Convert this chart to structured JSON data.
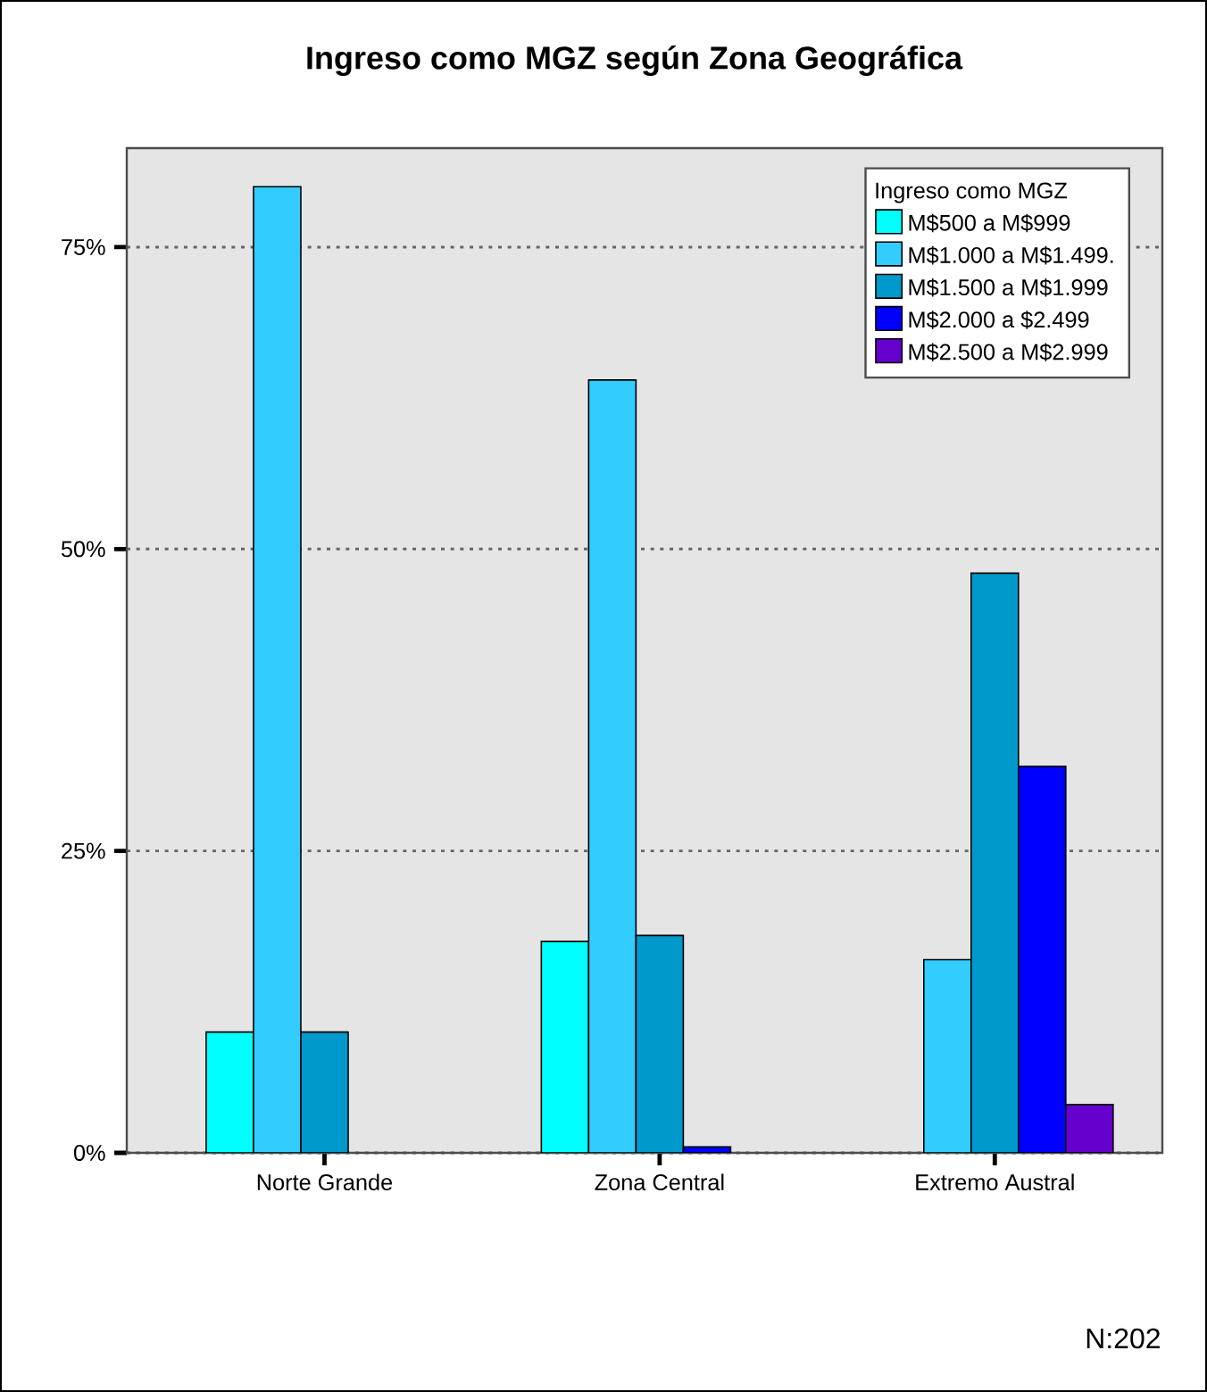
{
  "chart_data": {
    "type": "bar",
    "title": "Ingreso como MGZ según Zona Geográfica",
    "categories": [
      "Norte Grande",
      "Zona Central",
      "Extremo Austral"
    ],
    "legend_title": "Ingreso como MGZ",
    "series": [
      {
        "name": "M$500 a M$999",
        "color": "#00ffff",
        "values": [
          10,
          17.5,
          null
        ]
      },
      {
        "name": "M$1.000 a M$1.499.",
        "color": "#33ccff",
        "values": [
          80,
          64,
          16
        ]
      },
      {
        "name": "M$1.500 a M$1.999",
        "color": "#0099cc",
        "values": [
          10,
          18,
          48
        ]
      },
      {
        "name": "M$2.000 a $2.499",
        "color": "#0000ff",
        "values": [
          null,
          0.5,
          32
        ]
      },
      {
        "name": "M$2.500 a M$2.999",
        "color": "#6600cc",
        "values": [
          null,
          null,
          4
        ]
      }
    ],
    "ylim": [
      0,
      83.2
    ],
    "yticks": [
      {
        "value": 0,
        "label": "0%"
      },
      {
        "value": 25,
        "label": "25%"
      },
      {
        "value": 50,
        "label": "50%"
      },
      {
        "value": 75,
        "label": "75%"
      }
    ],
    "grid": "y",
    "legend": "top right",
    "annotations": [
      "N:202"
    ]
  }
}
